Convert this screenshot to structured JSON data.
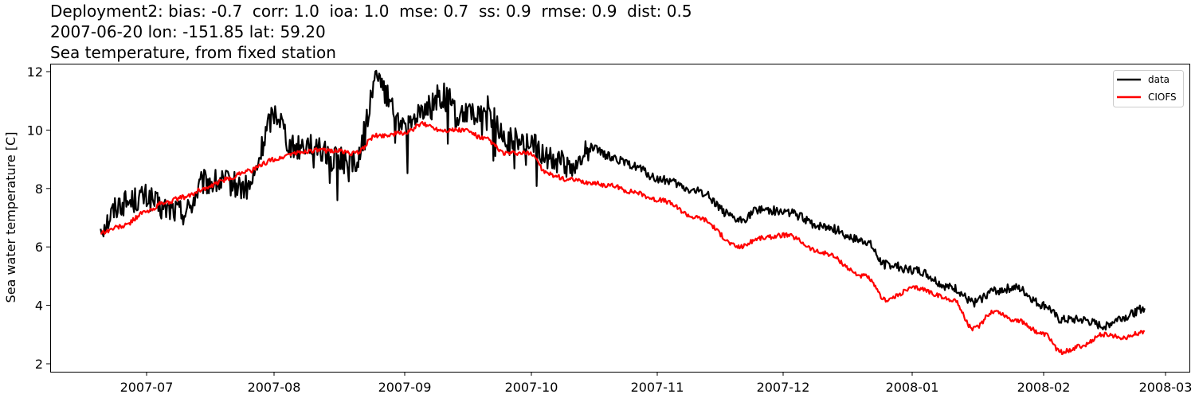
{
  "title": {
    "line1": "Deployment2: bias: -0.7  corr: 1.0  ioa: 1.0  mse: 0.7  ss: 0.9  rmse: 0.9  dist: 0.5",
    "line2": "2007-06-20 lon: -151.85 lat: 59.20",
    "line3": "Sea temperature, from fixed station"
  },
  "colors": {
    "data": "#000000",
    "model": "#ff0000",
    "frame": "#000000"
  },
  "chart_data": {
    "type": "line",
    "title": "Deployment2: bias: -0.7  corr: 1.0  ioa: 1.0  mse: 0.7  ss: 0.9  rmse: 0.9  dist: 0.5 / 2007-06-20 lon: -151.85 lat: 59.20 / Sea temperature, from fixed station",
    "xlabel": "",
    "ylabel": "Sea water temperature [C]",
    "ylim": [
      1.8,
      12.3
    ],
    "yticks": [
      2,
      4,
      6,
      8,
      10,
      12
    ],
    "xticks": [
      "2007-07",
      "2007-08",
      "2007-09",
      "2007-10",
      "2007-11",
      "2007-12",
      "2008-01",
      "2008-02",
      "2008-03"
    ],
    "grid": false,
    "legend": {
      "position": "upper right",
      "entries": [
        "data",
        "CIOFS"
      ]
    },
    "x": [
      "2007-06-20",
      "2007-06-25",
      "2007-07-01",
      "2007-07-05",
      "2007-07-10",
      "2007-07-15",
      "2007-07-20",
      "2007-07-25",
      "2007-08-01",
      "2007-08-05",
      "2007-08-10",
      "2007-08-15",
      "2007-08-20",
      "2007-08-25",
      "2007-09-01",
      "2007-09-05",
      "2007-09-10",
      "2007-09-15",
      "2007-09-20",
      "2007-09-25",
      "2007-10-01",
      "2007-10-05",
      "2007-10-10",
      "2007-10-15",
      "2007-10-20",
      "2007-10-25",
      "2007-11-01",
      "2007-11-10",
      "2007-11-20",
      "2007-11-25",
      "2007-12-01",
      "2007-12-10",
      "2007-12-20",
      "2007-12-25",
      "2008-01-01",
      "2008-01-10",
      "2008-01-15",
      "2008-01-20",
      "2008-01-25",
      "2008-02-01",
      "2008-02-05",
      "2008-02-10",
      "2008-02-15",
      "2008-02-20",
      "2008-02-25"
    ],
    "series": [
      {
        "name": "data",
        "color": "#000000",
        "values": [
          6.7,
          7.5,
          7.7,
          7.3,
          7.2,
          8.2,
          8.2,
          8.0,
          10.6,
          9.4,
          9.6,
          9.0,
          8.9,
          11.6,
          10.0,
          10.8,
          11.2,
          10.5,
          10.8,
          9.7,
          9.7,
          9.0,
          8.8,
          9.4,
          9.1,
          8.8,
          8.3,
          7.9,
          6.9,
          7.3,
          7.2,
          6.7,
          6.2,
          5.4,
          5.2,
          4.6,
          4.1,
          4.5,
          4.6,
          4.0,
          3.5,
          3.5,
          3.3,
          3.6,
          3.9
        ]
      },
      {
        "name": "CIOFS",
        "color": "#ff0000",
        "values": [
          6.5,
          6.7,
          7.2,
          7.5,
          7.7,
          8.0,
          8.3,
          8.6,
          9.0,
          9.2,
          9.3,
          9.3,
          9.2,
          9.8,
          9.9,
          10.2,
          10.0,
          10.0,
          9.7,
          9.2,
          9.2,
          8.5,
          8.3,
          8.2,
          8.1,
          7.9,
          7.6,
          7.0,
          6.0,
          6.3,
          6.4,
          5.8,
          5.0,
          4.2,
          4.6,
          4.2,
          3.2,
          3.8,
          3.5,
          3.0,
          2.4,
          2.6,
          3.0,
          2.9,
          3.1
        ]
      }
    ]
  },
  "axes": {
    "ylabel": "Sea water temperature [C]",
    "yticks": [
      "2",
      "4",
      "6",
      "8",
      "10",
      "12"
    ],
    "xticks": [
      "2007-07",
      "2007-08",
      "2007-09",
      "2007-10",
      "2007-11",
      "2007-12",
      "2008-01",
      "2008-02",
      "2008-03"
    ]
  },
  "legend": {
    "items": [
      "data",
      "CIOFS"
    ]
  }
}
